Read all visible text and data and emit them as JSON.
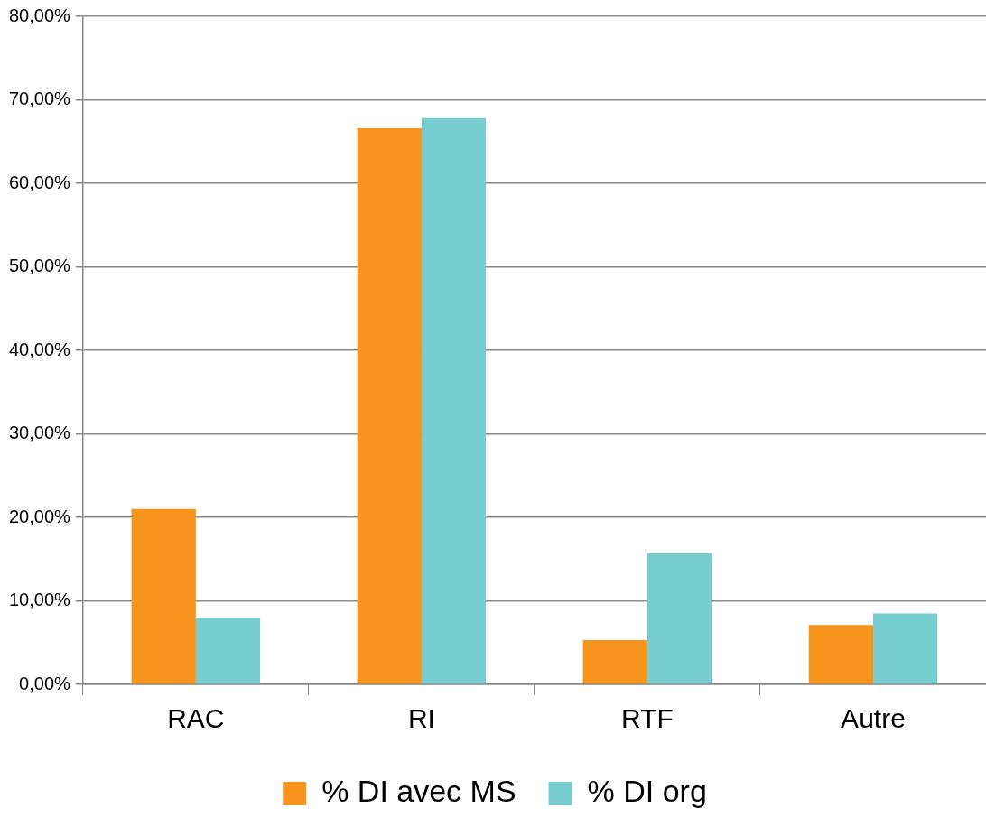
{
  "chart_data": {
    "type": "bar",
    "categories": [
      "RAC",
      "RI",
      "RTF",
      "Autre"
    ],
    "series": [
      {
        "name": "% DI avec MS",
        "color": "#f7941d",
        "values": [
          21.0,
          66.6,
          5.3,
          7.1
        ]
      },
      {
        "name": "% DI org",
        "color": "#78cdd0",
        "values": [
          8.0,
          67.8,
          15.7,
          8.5
        ]
      }
    ],
    "ylim": [
      0,
      80
    ],
    "yticks": [
      {
        "value": 0,
        "label": "0,00%"
      },
      {
        "value": 10,
        "label": "10,00%"
      },
      {
        "value": 20,
        "label": "20,00%"
      },
      {
        "value": 30,
        "label": "30,00%"
      },
      {
        "value": 40,
        "label": "40,00%"
      },
      {
        "value": 50,
        "label": "50,00%"
      },
      {
        "value": 60,
        "label": "60,00%"
      },
      {
        "value": 70,
        "label": "70,00%"
      },
      {
        "value": 80,
        "label": "80,00%"
      }
    ],
    "grid": "y",
    "legend": "bottom"
  }
}
